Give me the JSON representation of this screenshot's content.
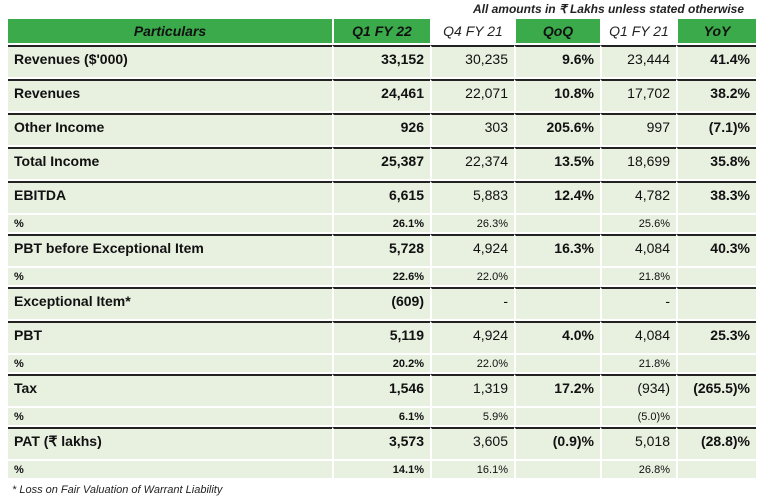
{
  "note": "All amounts in ₹ Lakhs unless stated otherwise",
  "headers": [
    "Particulars",
    "Q1 FY 22",
    "Q4 FY 21",
    "QoQ",
    "Q1 FY 21",
    "YoY"
  ],
  "rows": [
    {
      "label": "Revenues ($'000)",
      "v": [
        "33,152",
        "30,235",
        "9.6%",
        "23,444",
        "41.4%"
      ]
    },
    {
      "label": "Revenues",
      "v": [
        "24,461",
        "22,071",
        "10.8%",
        "17,702",
        "38.2%"
      ]
    },
    {
      "label": "Other Income",
      "v": [
        "926",
        "303",
        "205.6%",
        "997",
        "(7.1)%"
      ]
    },
    {
      "label": "Total Income",
      "v": [
        "25,387",
        "22,374",
        "13.5%",
        "18,699",
        "35.8%"
      ]
    },
    {
      "label": "EBITDA",
      "v": [
        "6,615",
        "5,883",
        "12.4%",
        "4,782",
        "38.3%"
      ]
    },
    {
      "label": "%",
      "v": [
        "26.1%",
        "26.3%",
        "",
        "25.6%",
        ""
      ]
    },
    {
      "label": "PBT before Exceptional Item",
      "v": [
        "5,728",
        "4,924",
        "16.3%",
        "4,084",
        "40.3%"
      ]
    },
    {
      "label": "%",
      "v": [
        "22.6%",
        "22.0%",
        "",
        "21.8%",
        ""
      ]
    },
    {
      "label": "Exceptional Item*",
      "v": [
        "(609)",
        "-",
        "",
        "-",
        ""
      ]
    },
    {
      "label": "PBT",
      "v": [
        "5,119",
        "4,924",
        "4.0%",
        "4,084",
        "25.3%"
      ]
    },
    {
      "label": "%",
      "v": [
        "20.2%",
        "22.0%",
        "",
        "21.8%",
        ""
      ]
    },
    {
      "label": "Tax",
      "v": [
        "1,546",
        "1,319",
        "17.2%",
        "(934)",
        "(265.5)%"
      ]
    },
    {
      "label": "%",
      "v": [
        "6.1%",
        "5.9%",
        "",
        "(5.0)%",
        ""
      ]
    },
    {
      "label": "PAT (₹ lakhs)",
      "v": [
        "3,573",
        "3,605",
        "(0.9)%",
        "5,018",
        "(28.8)%"
      ]
    },
    {
      "label": "%",
      "v": [
        "14.1%",
        "16.1%",
        "",
        "26.8%",
        ""
      ]
    }
  ],
  "footnote": "* Loss on Fair Valuation of Warrant Liability"
}
